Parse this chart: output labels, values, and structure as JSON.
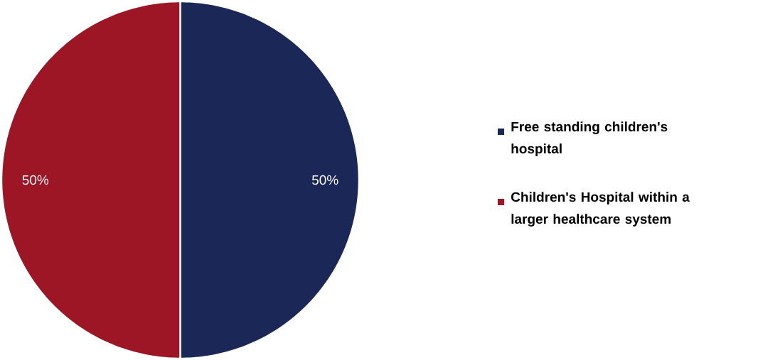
{
  "chart_data": {
    "type": "pie",
    "categories": [
      "Free standing children's hospital",
      "Children's Hospital within a larger healthcare system"
    ],
    "values": [
      50,
      50
    ],
    "colors": [
      "#1b2857",
      "#9c1626"
    ],
    "value_labels": [
      "50%",
      "50%"
    ],
    "legend": "right"
  }
}
